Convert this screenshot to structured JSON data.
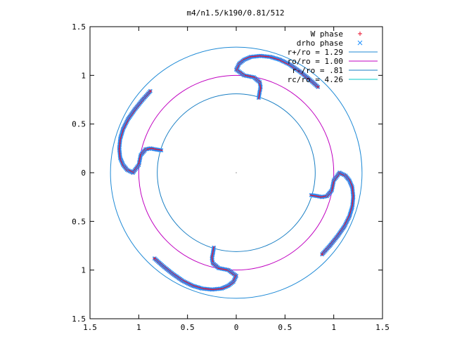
{
  "chart_data": {
    "type": "scatter",
    "title": "m4/n1.5/k190/0.81/512",
    "xlabel": "",
    "ylabel": "",
    "xlim": [
      -1.5,
      1.5
    ],
    "ylim": [
      -1.5,
      1.5
    ],
    "grid": false,
    "legend_position": "top-right",
    "x_ticks": [
      {
        "value": -1.5,
        "label": "1.5"
      },
      {
        "value": -1.0,
        "label": "1"
      },
      {
        "value": -0.5,
        "label": "0.5"
      },
      {
        "value": 0.0,
        "label": "0"
      },
      {
        "value": 0.5,
        "label": "0.5"
      },
      {
        "value": 1.0,
        "label": "1"
      },
      {
        "value": 1.5,
        "label": "1.5"
      }
    ],
    "y_ticks": [
      {
        "value": 1.5,
        "label": "1.5"
      },
      {
        "value": 1.0,
        "label": "1"
      },
      {
        "value": 0.5,
        "label": "0.5"
      },
      {
        "value": 0.0,
        "label": "0"
      },
      {
        "value": -0.5,
        "label": "0.5"
      },
      {
        "value": -1.0,
        "label": "1"
      },
      {
        "value": -1.5,
        "label": "1.5"
      }
    ],
    "legend": [
      {
        "label": "W phase",
        "marker": "plus",
        "color": "#e8112d"
      },
      {
        "label": "drho phase",
        "marker": "cross",
        "color": "#1e90ff"
      },
      {
        "label": "r+/ro = 1.29",
        "marker": "line",
        "color": "#1f8ad6"
      },
      {
        "label": "ro/ro = 1.00",
        "marker": "line",
        "color": "#c000c0"
      },
      {
        "label": "r-/ro = .81",
        "marker": "line",
        "color": "#1a7fc4"
      },
      {
        "label": "rc/ro = 4.26",
        "marker": "line",
        "color": "#00c8c8"
      }
    ],
    "circles": [
      {
        "name": "r+/ro = 1.29",
        "radius": 1.29,
        "color": "#1f8ad6"
      },
      {
        "name": "ro/ro = 1.00",
        "radius": 1.0,
        "color": "#c000c0"
      },
      {
        "name": "r-/ro = .81",
        "radius": 0.81,
        "color": "#1a7fc4"
      }
    ],
    "arms": [
      {
        "points": [
          [
            0.23,
            0.77
          ],
          [
            0.24,
            0.83
          ],
          [
            0.25,
            0.88
          ],
          [
            0.24,
            0.93
          ],
          [
            0.18,
            0.98
          ],
          [
            0.08,
            1.0
          ],
          [
            0.0,
            1.06
          ],
          [
            0.03,
            1.12
          ],
          [
            0.08,
            1.16
          ],
          [
            0.15,
            1.19
          ],
          [
            0.25,
            1.2
          ],
          [
            0.35,
            1.19
          ],
          [
            0.45,
            1.16
          ],
          [
            0.55,
            1.11
          ],
          [
            0.65,
            1.04
          ],
          [
            0.75,
            0.96
          ],
          [
            0.85,
            0.87
          ]
        ]
      },
      {
        "points": [
          [
            0.77,
            -0.23
          ],
          [
            0.83,
            -0.24
          ],
          [
            0.88,
            -0.25
          ],
          [
            0.93,
            -0.24
          ],
          [
            0.98,
            -0.18
          ],
          [
            1.0,
            -0.08
          ],
          [
            1.06,
            0.0
          ],
          [
            1.12,
            -0.03
          ],
          [
            1.16,
            -0.08
          ],
          [
            1.19,
            -0.15
          ],
          [
            1.2,
            -0.25
          ],
          [
            1.19,
            -0.35
          ],
          [
            1.16,
            -0.45
          ],
          [
            1.11,
            -0.55
          ],
          [
            1.04,
            -0.65
          ],
          [
            0.96,
            -0.75
          ],
          [
            0.87,
            -0.85
          ]
        ]
      },
      {
        "points": [
          [
            -0.23,
            -0.77
          ],
          [
            -0.24,
            -0.83
          ],
          [
            -0.25,
            -0.88
          ],
          [
            -0.24,
            -0.93
          ],
          [
            -0.18,
            -0.98
          ],
          [
            -0.08,
            -1.0
          ],
          [
            0.0,
            -1.06
          ],
          [
            -0.03,
            -1.12
          ],
          [
            -0.08,
            -1.16
          ],
          [
            -0.15,
            -1.19
          ],
          [
            -0.25,
            -1.2
          ],
          [
            -0.35,
            -1.19
          ],
          [
            -0.45,
            -1.16
          ],
          [
            -0.55,
            -1.11
          ],
          [
            -0.65,
            -1.04
          ],
          [
            -0.75,
            -0.96
          ],
          [
            -0.85,
            -0.87
          ]
        ]
      },
      {
        "points": [
          [
            -0.77,
            0.23
          ],
          [
            -0.83,
            0.24
          ],
          [
            -0.88,
            0.25
          ],
          [
            -0.93,
            0.24
          ],
          [
            -0.98,
            0.18
          ],
          [
            -1.0,
            0.08
          ],
          [
            -1.06,
            0.0
          ],
          [
            -1.12,
            0.03
          ],
          [
            -1.16,
            0.08
          ],
          [
            -1.19,
            0.15
          ],
          [
            -1.2,
            0.25
          ],
          [
            -1.19,
            0.35
          ],
          [
            -1.16,
            0.45
          ],
          [
            -1.11,
            0.55
          ],
          [
            -1.04,
            0.65
          ],
          [
            -0.96,
            0.75
          ],
          [
            -0.87,
            0.85
          ]
        ]
      }
    ],
    "center_dot": [
      0,
      0
    ]
  }
}
